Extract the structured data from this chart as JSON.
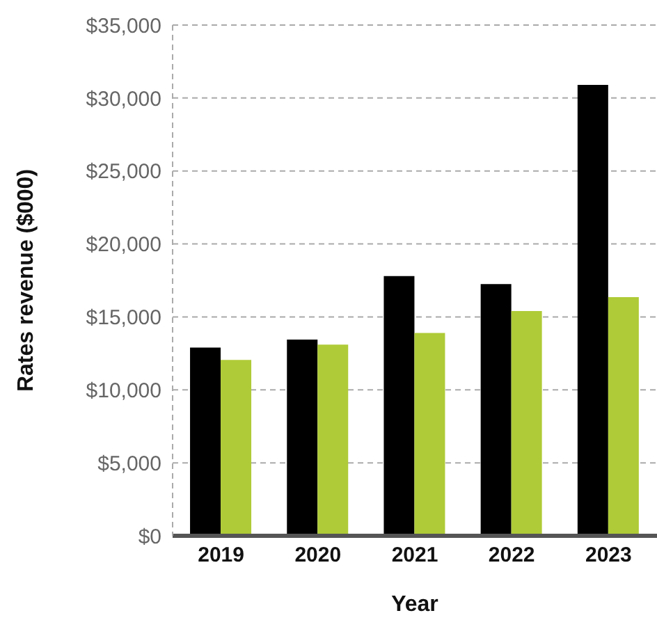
{
  "chart_data": {
    "type": "bar",
    "xlabel": "Year",
    "ylabel": "Rates revenue ($000)",
    "categories": [
      "2019",
      "2020",
      "2021",
      "2022",
      "2023"
    ],
    "series": [
      {
        "color": "#000000",
        "values": [
          12900,
          13450,
          17800,
          17250,
          30900
        ]
      },
      {
        "color": "#afcb37",
        "values": [
          12050,
          13100,
          13900,
          15400,
          16350
        ]
      }
    ],
    "ylim": [
      0,
      35000
    ],
    "yticks": [
      {
        "value": 0,
        "label": "$0"
      },
      {
        "value": 5000,
        "label": "$5,000"
      },
      {
        "value": 10000,
        "label": "$10,000"
      },
      {
        "value": 15000,
        "label": "$15,000"
      },
      {
        "value": 20000,
        "label": "$20,000"
      },
      {
        "value": 25000,
        "label": "$25,000"
      },
      {
        "value": 30000,
        "label": "$30,000"
      },
      {
        "value": 35000,
        "label": "$35,000"
      }
    ],
    "grid": "y",
    "legend": false
  }
}
